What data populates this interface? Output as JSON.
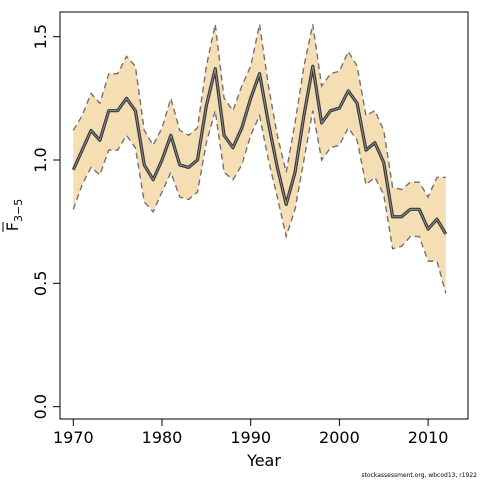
{
  "chart_data": {
    "type": "line",
    "title": "",
    "xlabel": "Year",
    "ylabel": {
      "main": "F",
      "subscript": "3−5"
    },
    "xlim": [
      1968.5,
      2014.5
    ],
    "ylim": [
      -0.05,
      1.6
    ],
    "x_ticks": [
      1970,
      1980,
      1990,
      2000,
      2010
    ],
    "y_ticks": [
      0.0,
      0.5,
      1.0,
      1.5
    ],
    "y_tick_labels": [
      "0.0",
      "0.5",
      "1.0",
      "1.5"
    ],
    "grid": false,
    "legend": "none",
    "colors": {
      "band_fill": "#f5deb3",
      "band_edge": "#7a6f6f",
      "line": "#3a3a3a",
      "axes": "#000000"
    },
    "x": [
      1970,
      1971,
      1972,
      1973,
      1974,
      1975,
      1976,
      1977,
      1978,
      1979,
      1980,
      1981,
      1982,
      1983,
      1984,
      1985,
      1986,
      1987,
      1988,
      1989,
      1990,
      1991,
      1992,
      1993,
      1994,
      1995,
      1996,
      1997,
      1998,
      1999,
      2000,
      2001,
      2002,
      2003,
      2004,
      2005,
      2006,
      2007,
      2008,
      2009,
      2010,
      2011,
      2012
    ],
    "series": [
      {
        "role": "upper",
        "values": [
          1.12,
          1.18,
          1.27,
          1.23,
          1.35,
          1.35,
          1.42,
          1.38,
          1.12,
          1.06,
          1.13,
          1.25,
          1.12,
          1.1,
          1.13,
          1.38,
          1.55,
          1.25,
          1.2,
          1.3,
          1.38,
          1.55,
          1.3,
          1.1,
          0.95,
          1.15,
          1.38,
          1.55,
          1.3,
          1.35,
          1.36,
          1.44,
          1.38,
          1.18,
          1.2,
          1.12,
          0.89,
          0.88,
          0.91,
          0.91,
          0.85,
          0.93,
          0.93
        ]
      },
      {
        "role": "estimate",
        "values": [
          0.96,
          1.04,
          1.12,
          1.08,
          1.2,
          1.2,
          1.25,
          1.2,
          0.98,
          0.92,
          1.0,
          1.1,
          0.98,
          0.97,
          1.0,
          1.22,
          1.37,
          1.1,
          1.05,
          1.13,
          1.25,
          1.35,
          1.15,
          0.97,
          0.82,
          0.95,
          1.18,
          1.38,
          1.15,
          1.2,
          1.21,
          1.28,
          1.23,
          1.04,
          1.07,
          0.99,
          0.77,
          0.77,
          0.8,
          0.8,
          0.72,
          0.76,
          0.7
        ]
      },
      {
        "role": "lower",
        "values": [
          0.8,
          0.9,
          0.97,
          0.94,
          1.04,
          1.04,
          1.1,
          1.05,
          0.83,
          0.79,
          0.87,
          0.95,
          0.85,
          0.84,
          0.87,
          1.07,
          1.2,
          0.95,
          0.92,
          0.98,
          1.1,
          1.18,
          1.0,
          0.85,
          0.69,
          0.8,
          1.0,
          1.2,
          1.0,
          1.05,
          1.06,
          1.13,
          1.08,
          0.9,
          0.93,
          0.86,
          0.64,
          0.65,
          0.69,
          0.69,
          0.59,
          0.59,
          0.46
        ]
      }
    ]
  },
  "credit": "stockassessment.org, wbcod13, r1922"
}
